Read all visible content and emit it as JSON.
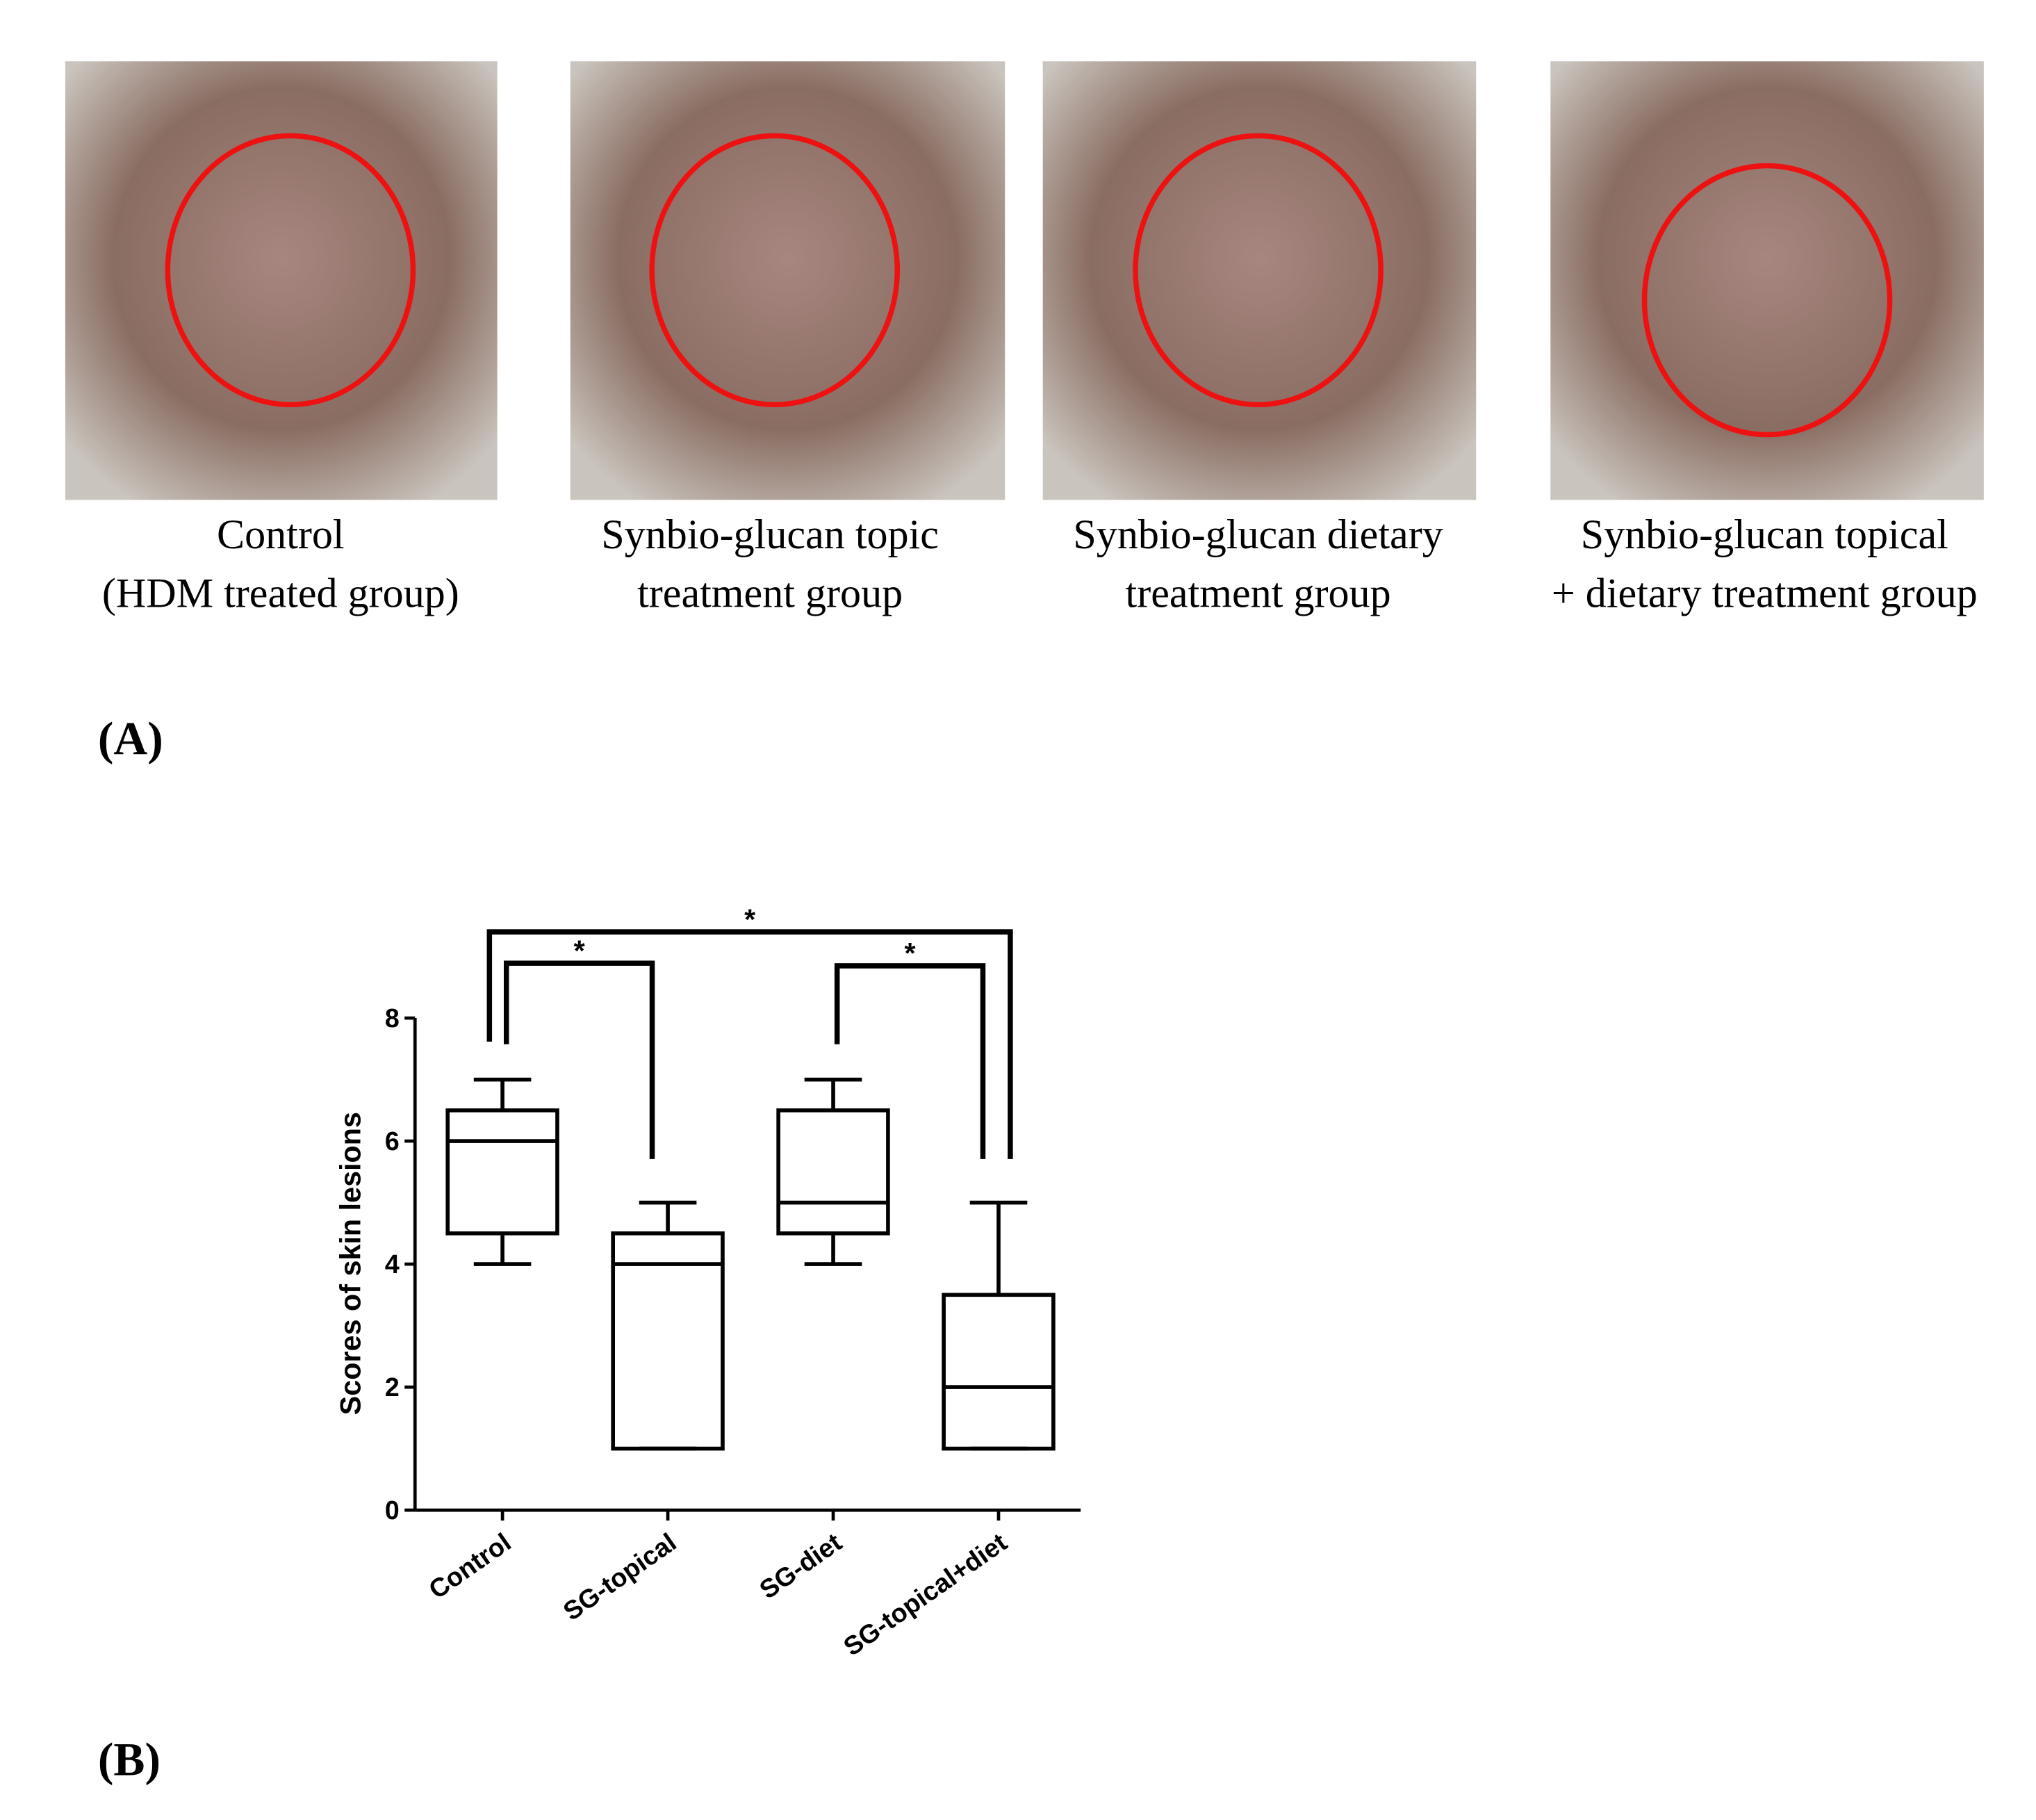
{
  "photos": [
    {
      "caption": [
        "Control",
        "(HDM treated group)"
      ]
    },
    {
      "caption": [
        "Synbio-glucan topic",
        "treatment group"
      ]
    },
    {
      "caption": [
        "Synbio-glucan dietary",
        "treatment group"
      ]
    },
    {
      "caption": [
        "Synbio-glucan topical",
        "+ dietary treatment group"
      ]
    }
  ],
  "panel_labels": [
    "(A)",
    "(B)"
  ],
  "chart_data": {
    "type": "box",
    "y_label": "Scores of skin lesions",
    "categories": [
      "Control",
      "SG-topical",
      "SG-diet",
      "SG-topical+diet"
    ],
    "min": [
      4,
      1,
      4,
      1
    ],
    "q1": [
      4.5,
      1,
      4.5,
      1
    ],
    "median": [
      6,
      4,
      5,
      2
    ],
    "q3": [
      6.5,
      4.5,
      6.5,
      3.5
    ],
    "max": [
      7,
      5,
      7,
      5
    ],
    "ylim": [
      0,
      8
    ],
    "yticks": [
      0,
      2,
      4,
      6,
      8
    ],
    "color": "#000000",
    "comparisons": [
      {
        "groups": [
          0,
          1
        ],
        "label": "*"
      },
      {
        "groups": [
          2,
          3
        ],
        "label": "*"
      },
      {
        "groups": [
          0,
          3
        ],
        "label": "*"
      }
    ]
  }
}
